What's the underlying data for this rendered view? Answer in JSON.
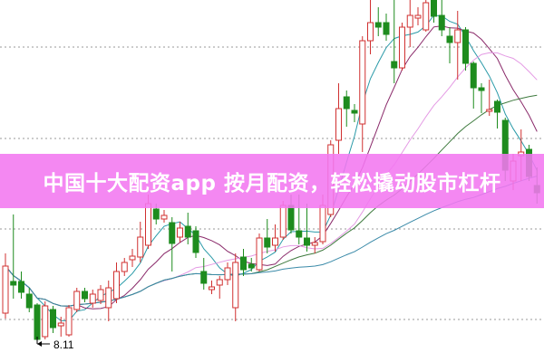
{
  "banner": {
    "title": "中国十大配资app 按月配资，轻松撬动股市杠杆"
  },
  "chart_data": {
    "type": "candlestick",
    "title": "",
    "xlabel": "",
    "ylabel": "",
    "grid": true,
    "ylim": [
      7.89,
      11.89
    ],
    "gridlines": [
      11.37,
      10.36,
      9.36,
      8.36
    ],
    "annotation": {
      "text": "8.11",
      "index": 4,
      "value": 8.11
    },
    "colors": {
      "up": "#d03030",
      "down": "#1e8c1e",
      "ma5": "#2a9aa8",
      "ma10": "#8a2a6a",
      "ma20": "#e49ae4",
      "ma30": "#3e7a3e",
      "ma60": "#3a8aa8",
      "banner": "#f378f0"
    },
    "ohlc": [
      [
        8.43,
        9.09,
        8.37,
        8.95
      ],
      [
        8.78,
        9.52,
        8.59,
        8.74
      ],
      [
        8.78,
        8.89,
        8.59,
        8.66
      ],
      [
        8.64,
        8.71,
        8.44,
        8.49
      ],
      [
        8.52,
        8.54,
        8.11,
        8.14
      ],
      [
        8.17,
        8.56,
        8.14,
        8.51
      ],
      [
        8.47,
        8.51,
        8.21,
        8.27
      ],
      [
        8.29,
        8.39,
        8.17,
        8.32
      ],
      [
        8.19,
        8.52,
        8.17,
        8.49
      ],
      [
        8.47,
        8.71,
        8.44,
        8.67
      ],
      [
        8.67,
        8.71,
        8.55,
        8.59
      ],
      [
        8.54,
        8.69,
        8.49,
        8.64
      ],
      [
        8.57,
        8.74,
        8.53,
        8.69
      ],
      [
        8.49,
        8.79,
        8.34,
        8.71
      ],
      [
        8.59,
        8.99,
        8.54,
        8.89
      ],
      [
        8.89,
        9.04,
        8.84,
        8.99
      ],
      [
        9.02,
        9.14,
        8.94,
        9.06
      ],
      [
        9.05,
        9.44,
        8.99,
        9.27
      ],
      [
        9.18,
        9.74,
        9.14,
        9.64
      ],
      [
        9.58,
        9.64,
        9.41,
        9.47
      ],
      [
        9.47,
        9.57,
        9.43,
        9.51
      ],
      [
        9.43,
        9.49,
        8.89,
        9.2
      ],
      [
        9.27,
        9.44,
        9.21,
        9.37
      ],
      [
        9.39,
        9.54,
        9.19,
        9.27
      ],
      [
        9.34,
        9.39,
        9.04,
        9.1
      ],
      [
        8.89,
        9.04,
        8.69,
        8.76
      ],
      [
        8.69,
        8.79,
        8.64,
        8.72
      ],
      [
        8.74,
        8.84,
        8.59,
        8.8
      ],
      [
        8.8,
        8.99,
        8.74,
        8.93
      ],
      [
        8.49,
        9.09,
        8.34,
        8.99
      ],
      [
        9.05,
        9.14,
        8.84,
        8.91
      ],
      [
        8.97,
        9.04,
        8.89,
        8.93
      ],
      [
        8.91,
        9.31,
        8.89,
        9.26
      ],
      [
        9.26,
        9.47,
        9.09,
        9.16
      ],
      [
        9.18,
        9.41,
        9.11,
        9.26
      ],
      [
        9.27,
        9.67,
        9.24,
        9.62
      ],
      [
        9.62,
        9.74,
        9.31,
        9.35
      ],
      [
        9.34,
        9.74,
        9.19,
        9.27
      ],
      [
        9.26,
        9.64,
        9.11,
        9.18
      ],
      [
        9.18,
        9.27,
        9.09,
        9.21
      ],
      [
        9.22,
        9.74,
        9.19,
        9.62
      ],
      [
        9.52,
        10.34,
        9.49,
        10.29
      ],
      [
        10.34,
        10.97,
        10.19,
        10.69
      ],
      [
        10.82,
        10.89,
        10.49,
        10.69
      ],
      [
        10.67,
        10.74,
        10.54,
        10.64
      ],
      [
        10.52,
        11.49,
        10.21,
        11.44
      ],
      [
        11.44,
        11.89,
        11.29,
        11.64
      ],
      [
        11.64,
        11.81,
        11.49,
        11.59
      ],
      [
        11.64,
        11.74,
        11.44,
        11.51
      ],
      [
        11.21,
        11.89,
        10.97,
        11.14
      ],
      [
        11.14,
        11.64,
        11.11,
        11.59
      ],
      [
        11.59,
        11.89,
        11.37,
        11.72
      ],
      [
        11.69,
        11.81,
        11.61,
        11.72
      ],
      [
        11.56,
        11.89,
        11.54,
        11.86
      ],
      [
        11.89,
        11.89,
        11.64,
        11.71
      ],
      [
        11.72,
        11.89,
        11.49,
        11.56
      ],
      [
        11.49,
        11.59,
        11.19,
        11.42
      ],
      [
        11.42,
        11.77,
        11.01,
        11.56
      ],
      [
        11.56,
        11.59,
        11.11,
        11.19
      ],
      [
        11.19,
        11.21,
        10.69,
        10.92
      ],
      [
        10.92,
        10.97,
        10.64,
        10.89
      ],
      [
        10.66,
        11.01,
        10.61,
        10.68
      ],
      [
        10.77,
        10.79,
        10.47,
        10.65
      ],
      [
        10.56,
        10.59,
        9.89,
        10.01
      ],
      [
        9.89,
        10.19,
        9.79,
        10.11
      ],
      [
        10.17,
        10.46,
        9.89,
        10.21
      ],
      [
        10.24,
        10.29,
        9.89,
        9.94
      ],
      [
        9.84,
        10.04,
        9.64,
        9.76
      ]
    ],
    "moving_averages": [
      5,
      10,
      20,
      30,
      60
    ]
  }
}
